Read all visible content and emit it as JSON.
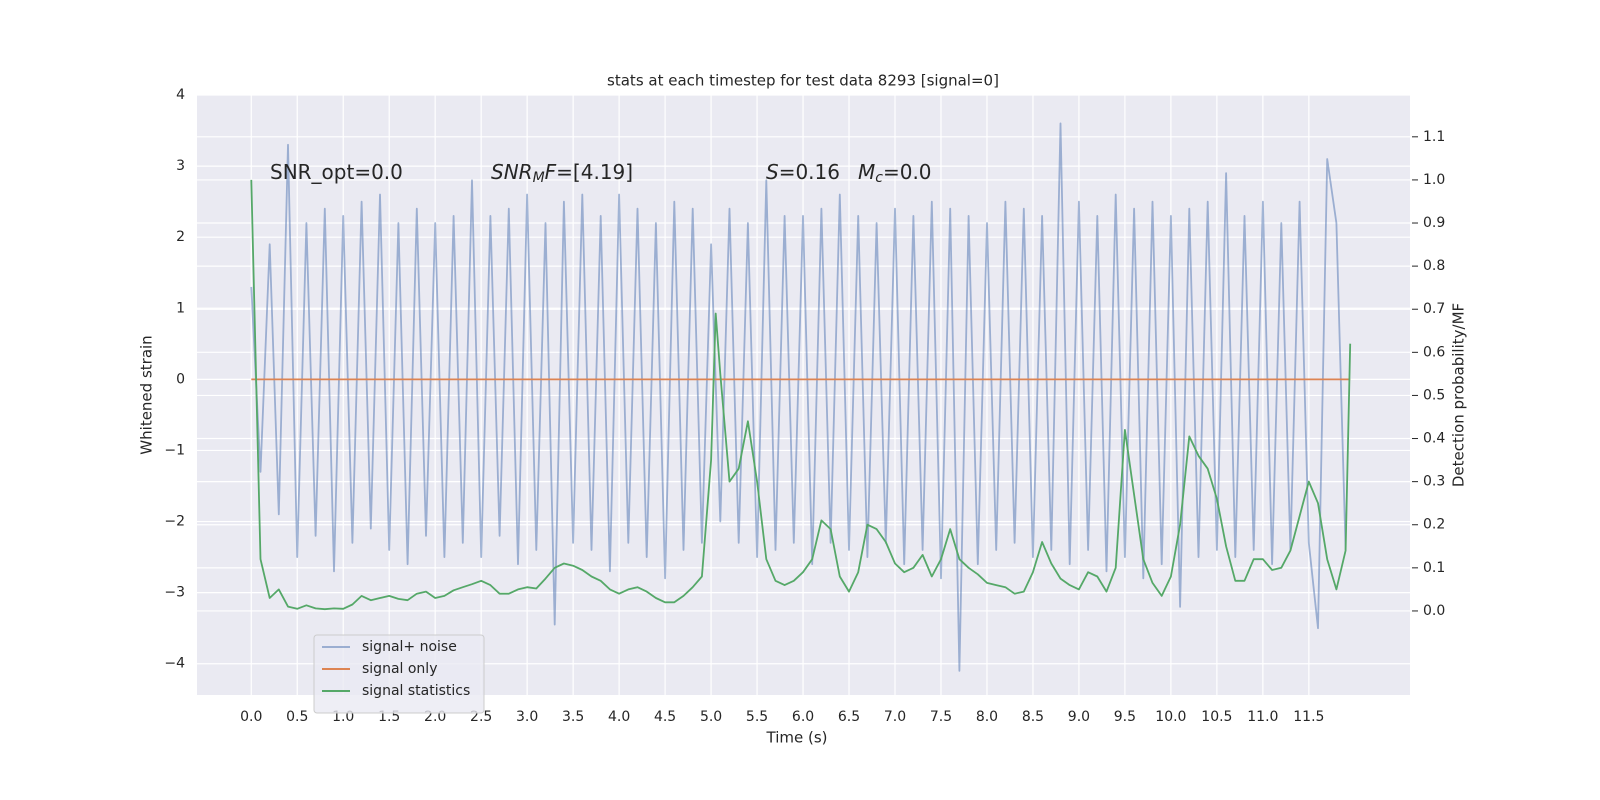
{
  "chart_data": {
    "type": "line",
    "title": "stats at each timestep for test data 8293 [signal=0]",
    "xlabel": "Time (s)",
    "ylabel": "Whitened strain",
    "y2label": "Detection probability/MF",
    "xlim": [
      -0.59,
      12.6
    ],
    "ylim": [
      -4.44,
      4.0
    ],
    "y2lim": [
      -0.195,
      1.197
    ],
    "xticks": [
      {
        "value": 0,
        "label": "0.0"
      },
      0.5,
      {
        "value": 1,
        "label": "1.0"
      },
      1.5,
      {
        "value": 2,
        "label": "2.0"
      },
      2.5,
      {
        "value": 3,
        "label": "3.0"
      },
      3.5,
      {
        "value": 4,
        "label": "4.0"
      },
      4.5,
      {
        "value": 5,
        "label": "5.0"
      },
      5.5,
      {
        "value": 6,
        "label": "6.0"
      },
      6.5,
      {
        "value": 7,
        "label": "7.0"
      },
      7.5,
      {
        "value": 8,
        "label": "8.0"
      },
      8.5,
      {
        "value": 9,
        "label": "9.0"
      },
      9.5,
      {
        "value": 10,
        "label": "10.0"
      },
      10.5,
      {
        "value": 11,
        "label": "11.0"
      },
      11.5
    ],
    "yticks": [
      {
        "value": -4,
        "label": "−4"
      },
      {
        "value": -3,
        "label": "−3"
      },
      {
        "value": -2,
        "label": "−2"
      },
      {
        "value": -1,
        "label": "−1"
      },
      0,
      1,
      2,
      3,
      4
    ],
    "y2ticks": [
      {
        "value": 0,
        "label": "0.0"
      },
      0.1,
      0.2,
      0.3,
      0.4,
      0.5,
      0.6,
      0.7,
      0.8,
      0.9,
      {
        "value": 1,
        "label": "1.0"
      },
      1.1
    ],
    "grid": true,
    "legend": "lower left",
    "annotations": [
      {
        "segments": [
          {
            "text": "SNR_opt=0.0"
          }
        ]
      },
      {
        "segments": [
          {
            "text": "SNR",
            "italic": true
          },
          {
            "text": "M",
            "italic": true,
            "sub": true
          },
          {
            "text": "F",
            "italic": true
          },
          {
            "text": "=[4.19]"
          }
        ]
      },
      {
        "segments": [
          {
            "text": "S",
            "italic": true
          },
          {
            "text": "=0.16"
          }
        ]
      },
      {
        "segments": [
          {
            "text": "M",
            "italic": true
          },
          {
            "text": "c",
            "italic": true,
            "sub": true
          },
          {
            "text": "=0.0"
          }
        ]
      }
    ],
    "series": [
      {
        "name": "signal+ noise",
        "color": "#4c72b0",
        "opacity": 0.5,
        "x": [
          0,
          0.1,
          0.2,
          0.3,
          0.4,
          0.5,
          0.6,
          0.7,
          0.8,
          0.9,
          1,
          1.1,
          1.2,
          1.3,
          1.4,
          1.5,
          1.6,
          1.7,
          1.8,
          1.9,
          2,
          2.1,
          2.2,
          2.3,
          2.4,
          2.5,
          2.6,
          2.7,
          2.8,
          2.9,
          3,
          3.1,
          3.2,
          3.3,
          3.4,
          3.5,
          3.6,
          3.7,
          3.8,
          3.9,
          4,
          4.1,
          4.2,
          4.3,
          4.4,
          4.5,
          4.6,
          4.7,
          4.8,
          4.9,
          5,
          5.1,
          5.2,
          5.3,
          5.4,
          5.5,
          5.6,
          5.7,
          5.8,
          5.9,
          6,
          6.1,
          6.2,
          6.3,
          6.4,
          6.5,
          6.6,
          6.7,
          6.8,
          6.9,
          7,
          7.1,
          7.2,
          7.3,
          7.4,
          7.5,
          7.6,
          7.7,
          7.8,
          7.9,
          8,
          8.1,
          8.2,
          8.3,
          8.4,
          8.5,
          8.6,
          8.7,
          8.8,
          8.9,
          9,
          9.1,
          9.2,
          9.3,
          9.4,
          9.5,
          9.6,
          9.7,
          9.8,
          9.9,
          10,
          10.1,
          10.2,
          10.3,
          10.4,
          10.5,
          10.6,
          10.7,
          10.8,
          10.9,
          11,
          11.1,
          11.2,
          11.3,
          11.4,
          11.5,
          11.6,
          11.7,
          11.8,
          11.9
        ],
        "values": [
          1.3,
          -1.3,
          1.9,
          -1.9,
          3.3,
          -2.5,
          2.2,
          -2.2,
          2.4,
          -2.7,
          2.3,
          -2.3,
          2.5,
          -2.1,
          2.6,
          -2.4,
          2.2,
          -2.6,
          2.4,
          -2.2,
          2.2,
          -2.5,
          2.3,
          -2.3,
          2.8,
          -2.5,
          2.3,
          -2.2,
          2.4,
          -2.6,
          2.6,
          -2.4,
          2.2,
          -3.45,
          2.5,
          -2.3,
          2.6,
          -2.4,
          2.3,
          -2.7,
          2.6,
          -2.3,
          2.4,
          -2.5,
          2.2,
          -2.8,
          2.5,
          -2.4,
          2.4,
          -2.3,
          1.9,
          -2.0,
          2.4,
          -2.3,
          2.2,
          -2.5,
          2.8,
          -2.4,
          2.3,
          -2.3,
          2.3,
          -2.6,
          2.4,
          -2.3,
          2.6,
          -2.4,
          2.3,
          -2.5,
          2.2,
          -2.3,
          2.4,
          -2.6,
          2.3,
          -2.4,
          2.5,
          -2.8,
          2.4,
          -4.1,
          2.3,
          -2.6,
          2.2,
          -2.4,
          2.5,
          -2.3,
          2.4,
          -2.5,
          2.3,
          -2.4,
          3.6,
          -2.6,
          2.5,
          -2.4,
          2.3,
          -2.7,
          2.6,
          -2.5,
          2.4,
          -2.8,
          2.5,
          -2.6,
          2.3,
          -3.2,
          2.4,
          -2.5,
          2.5,
          -2.4,
          2.9,
          -2.5,
          2.3,
          -2.4,
          2.5,
          -2.6,
          2.2,
          -2.4,
          2.5,
          -2.3,
          -3.5,
          3.1,
          2.2,
          -2.4
        ]
      },
      {
        "name": "signal only",
        "color": "#dd8452",
        "opacity": 1,
        "x": [
          0,
          11.95
        ],
        "values": [
          0,
          0
        ]
      },
      {
        "name": "signal statistics",
        "color": "#55a868",
        "opacity": 1,
        "axis": "y2",
        "x": [
          0,
          0.1,
          0.2,
          0.3,
          0.4,
          0.5,
          0.6,
          0.7,
          0.8,
          0.9,
          1,
          1.1,
          1.2,
          1.3,
          1.4,
          1.5,
          1.6,
          1.7,
          1.8,
          1.9,
          2,
          2.1,
          2.2,
          2.3,
          2.4,
          2.5,
          2.6,
          2.7,
          2.8,
          2.9,
          3,
          3.1,
          3.2,
          3.3,
          3.4,
          3.5,
          3.6,
          3.7,
          3.8,
          3.9,
          4,
          4.1,
          4.2,
          4.3,
          4.4,
          4.5,
          4.6,
          4.7,
          4.8,
          4.9,
          5,
          5.05,
          5.1,
          5.2,
          5.3,
          5.4,
          5.5,
          5.6,
          5.7,
          5.8,
          5.9,
          6,
          6.1,
          6.2,
          6.3,
          6.4,
          6.5,
          6.6,
          6.7,
          6.8,
          6.9,
          7,
          7.1,
          7.2,
          7.3,
          7.4,
          7.5,
          7.6,
          7.7,
          7.8,
          7.9,
          8,
          8.1,
          8.2,
          8.3,
          8.4,
          8.5,
          8.6,
          8.7,
          8.8,
          8.9,
          9,
          9.1,
          9.2,
          9.3,
          9.4,
          9.5,
          9.6,
          9.7,
          9.8,
          9.9,
          10,
          10.1,
          10.2,
          10.3,
          10.4,
          10.5,
          10.6,
          10.7,
          10.8,
          10.9,
          11,
          11.1,
          11.2,
          11.3,
          11.4,
          11.5,
          11.6,
          11.7,
          11.8,
          11.9,
          11.95
        ],
        "values": [
          1.0,
          0.12,
          0.03,
          0.05,
          0.01,
          0.005,
          0.013,
          0.006,
          0.004,
          0.006,
          0.005,
          0.015,
          0.035,
          0.025,
          0.03,
          0.035,
          0.028,
          0.025,
          0.04,
          0.045,
          0.03,
          0.035,
          0.048,
          0.055,
          0.062,
          0.07,
          0.06,
          0.04,
          0.04,
          0.05,
          0.055,
          0.052,
          0.075,
          0.1,
          0.11,
          0.105,
          0.095,
          0.08,
          0.07,
          0.05,
          0.04,
          0.05,
          0.055,
          0.045,
          0.03,
          0.02,
          0.02,
          0.035,
          0.055,
          0.08,
          0.35,
          0.69,
          0.55,
          0.3,
          0.33,
          0.44,
          0.3,
          0.12,
          0.07,
          0.06,
          0.07,
          0.09,
          0.12,
          0.21,
          0.19,
          0.08,
          0.045,
          0.09,
          0.2,
          0.19,
          0.16,
          0.11,
          0.09,
          0.1,
          0.13,
          0.08,
          0.12,
          0.19,
          0.12,
          0.1,
          0.085,
          0.065,
          0.06,
          0.055,
          0.04,
          0.045,
          0.09,
          0.16,
          0.11,
          0.075,
          0.06,
          0.05,
          0.09,
          0.08,
          0.045,
          0.1,
          0.42,
          0.27,
          0.12,
          0.065,
          0.035,
          0.08,
          0.2,
          0.405,
          0.36,
          0.33,
          0.26,
          0.15,
          0.07,
          0.07,
          0.12,
          0.12,
          0.095,
          0.1,
          0.14,
          0.22,
          0.3,
          0.25,
          0.12,
          0.05,
          0.14,
          0.62
        ]
      }
    ]
  }
}
